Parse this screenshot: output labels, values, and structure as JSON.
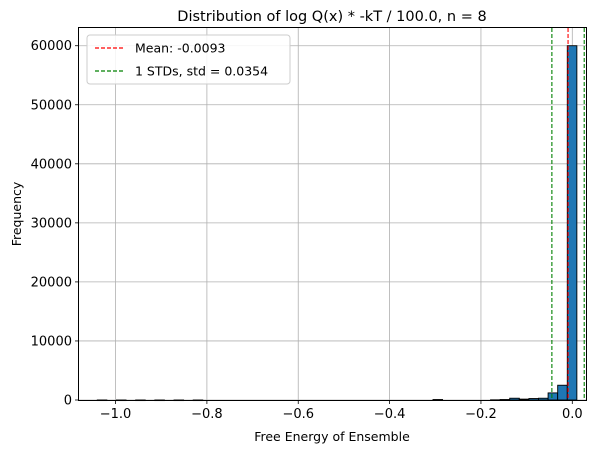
{
  "chart_data": {
    "type": "bar",
    "title": "Distribution of log Q(x) * -kT / 100.0, n = 8",
    "xlabel": "Free Energy of Ensemble",
    "ylabel": "Frequency",
    "xlim": [
      -1.08,
      0.03
    ],
    "ylim": [
      0,
      63000
    ],
    "xticks": [
      -1.0,
      -0.8,
      -0.6,
      -0.4,
      -0.2,
      0.0
    ],
    "xtick_labels": [
      "−1.0",
      "−0.8",
      "−0.6",
      "−0.4",
      "−0.2",
      "0.0"
    ],
    "yticks": [
      0,
      10000,
      20000,
      30000,
      40000,
      50000,
      60000
    ],
    "ytick_labels": [
      "0",
      "10000",
      "20000",
      "30000",
      "40000",
      "50000",
      "60000"
    ],
    "grid": true,
    "bar_color": "#1f77b4",
    "bins": [
      {
        "x0": -1.04,
        "x1": -1.019,
        "count": 5
      },
      {
        "x0": -0.998,
        "x1": -0.977,
        "count": 3
      },
      {
        "x0": -0.956,
        "x1": -0.935,
        "count": 2
      },
      {
        "x0": -0.914,
        "x1": -0.893,
        "count": 2
      },
      {
        "x0": -0.872,
        "x1": -0.851,
        "count": 2
      },
      {
        "x0": -0.83,
        "x1": -0.809,
        "count": 2
      },
      {
        "x0": -0.305,
        "x1": -0.284,
        "count": 80
      },
      {
        "x0": -0.179,
        "x1": -0.158,
        "count": 30
      },
      {
        "x0": -0.158,
        "x1": -0.137,
        "count": 80
      },
      {
        "x0": -0.137,
        "x1": -0.116,
        "count": 300
      },
      {
        "x0": -0.116,
        "x1": -0.095,
        "count": 150
      },
      {
        "x0": -0.095,
        "x1": -0.074,
        "count": 250
      },
      {
        "x0": -0.074,
        "x1": -0.053,
        "count": 300
      },
      {
        "x0": -0.053,
        "x1": -0.032,
        "count": 1200
      },
      {
        "x0": -0.032,
        "x1": -0.011,
        "count": 2500
      },
      {
        "x0": -0.011,
        "x1": 0.01,
        "count": 60000
      }
    ],
    "mean": -0.0093,
    "std": 0.0354,
    "lines": [
      {
        "name": "Mean: -0.0093",
        "x": -0.0093,
        "color": "#ff0000"
      },
      {
        "name": "1 STDs, std = 0.0354",
        "x": [
          -0.0447,
          0.0261
        ],
        "color": "#008000"
      }
    ],
    "legend": {
      "placement": "upper-left",
      "entries": [
        {
          "label": "Mean: -0.0093",
          "color": "#ff0000"
        },
        {
          "label": "1 STDs, std = 0.0354",
          "color": "#008000"
        }
      ]
    }
  }
}
